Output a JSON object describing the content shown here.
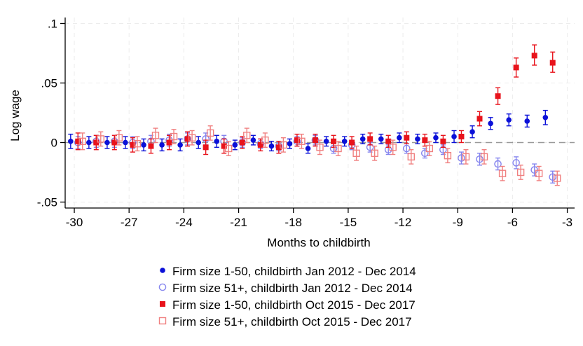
{
  "chart_data": {
    "type": "scatter",
    "xlabel": "Months to childbirth",
    "ylabel": "Log wage",
    "xlim": [
      -30.5,
      -2.6
    ],
    "ylim": [
      -0.055,
      0.105
    ],
    "xticks": [
      -30,
      -27,
      -24,
      -21,
      -18,
      -15,
      -12,
      -9,
      -6,
      -3
    ],
    "xtick_labels": [
      "-30",
      "-27",
      "-24",
      "-21",
      "-18",
      "-15",
      "-12",
      "-9",
      "-6",
      "-3"
    ],
    "yticks": [
      -0.05,
      0,
      0.05,
      0.1
    ],
    "ytick_labels": [
      "-.05",
      "0",
      ".05",
      ".1"
    ],
    "grid": true,
    "reference_line_y": 0,
    "legend_position": "bottom",
    "series": [
      {
        "name": "Firm size 1-50, childbirth Jan 2012 - Dec 2014",
        "marker": "filled-circle",
        "color": "#0a10d8",
        "x_offset": -0.2,
        "points": [
          {
            "x": -30,
            "y": 0.001,
            "lo": -0.005,
            "hi": 0.007
          },
          {
            "x": -29,
            "y": 0.0,
            "lo": -0.005,
            "hi": 0.005
          },
          {
            "x": -28,
            "y": 0.0,
            "lo": -0.005,
            "hi": 0.005
          },
          {
            "x": -27,
            "y": 0.0,
            "lo": -0.005,
            "hi": 0.005
          },
          {
            "x": -26,
            "y": -0.002,
            "lo": -0.007,
            "hi": 0.003
          },
          {
            "x": -25,
            "y": -0.002,
            "lo": -0.007,
            "hi": 0.003
          },
          {
            "x": -24,
            "y": -0.002,
            "lo": -0.007,
            "hi": 0.003
          },
          {
            "x": -23,
            "y": 0.0,
            "lo": -0.005,
            "hi": 0.005
          },
          {
            "x": -22,
            "y": 0.001,
            "lo": -0.004,
            "hi": 0.006
          },
          {
            "x": -21,
            "y": -0.002,
            "lo": -0.006,
            "hi": 0.002
          },
          {
            "x": -20,
            "y": 0.002,
            "lo": -0.002,
            "hi": 0.006
          },
          {
            "x": -19,
            "y": -0.003,
            "lo": -0.007,
            "hi": 0.001
          },
          {
            "x": -18,
            "y": -0.001,
            "lo": -0.005,
            "hi": 0.003
          },
          {
            "x": -17,
            "y": -0.005,
            "lo": -0.009,
            "hi": -0.001
          },
          {
            "x": -16,
            "y": 0.001,
            "lo": -0.003,
            "hi": 0.005
          },
          {
            "x": -15,
            "y": 0.001,
            "lo": -0.003,
            "hi": 0.005
          },
          {
            "x": -14,
            "y": 0.003,
            "lo": -0.001,
            "hi": 0.007
          },
          {
            "x": -13,
            "y": 0.003,
            "lo": -0.001,
            "hi": 0.007
          },
          {
            "x": -12,
            "y": 0.004,
            "lo": 0.0,
            "hi": 0.008
          },
          {
            "x": -11,
            "y": 0.003,
            "lo": -0.001,
            "hi": 0.007
          },
          {
            "x": -10,
            "y": 0.004,
            "lo": 0.0,
            "hi": 0.008
          },
          {
            "x": -9,
            "y": 0.005,
            "lo": 0.0,
            "hi": 0.01
          },
          {
            "x": -8,
            "y": 0.009,
            "lo": 0.004,
            "hi": 0.014
          },
          {
            "x": -7,
            "y": 0.016,
            "lo": 0.011,
            "hi": 0.021
          },
          {
            "x": -6,
            "y": 0.019,
            "lo": 0.014,
            "hi": 0.024
          },
          {
            "x": -5,
            "y": 0.018,
            "lo": 0.013,
            "hi": 0.023
          },
          {
            "x": -4,
            "y": 0.021,
            "lo": 0.015,
            "hi": 0.027
          }
        ]
      },
      {
        "name": "Firm size 51+, childbirth Jan 2012 - Dec 2014",
        "marker": "hollow-circle",
        "color": "#8585ee",
        "x_offset": 0.2,
        "points": [
          {
            "x": -30,
            "y": 0.0,
            "lo": -0.005,
            "hi": 0.005
          },
          {
            "x": -29,
            "y": 0.001,
            "lo": -0.004,
            "hi": 0.006
          },
          {
            "x": -28,
            "y": 0.001,
            "lo": -0.004,
            "hi": 0.006
          },
          {
            "x": -27,
            "y": 0.0,
            "lo": -0.005,
            "hi": 0.005
          },
          {
            "x": -26,
            "y": 0.001,
            "lo": -0.004,
            "hi": 0.006
          },
          {
            "x": -25,
            "y": 0.002,
            "lo": -0.003,
            "hi": 0.007
          },
          {
            "x": -24,
            "y": 0.003,
            "lo": -0.002,
            "hi": 0.008
          },
          {
            "x": -23,
            "y": 0.003,
            "lo": -0.002,
            "hi": 0.008
          },
          {
            "x": -22,
            "y": 0.001,
            "lo": -0.004,
            "hi": 0.006
          },
          {
            "x": -21,
            "y": 0.0,
            "lo": -0.004,
            "hi": 0.004
          },
          {
            "x": -20,
            "y": -0.001,
            "lo": -0.005,
            "hi": 0.003
          },
          {
            "x": -19,
            "y": -0.003,
            "lo": -0.007,
            "hi": 0.001
          },
          {
            "x": -18,
            "y": 0.001,
            "lo": -0.003,
            "hi": 0.005
          },
          {
            "x": -17,
            "y": 0.002,
            "lo": -0.002,
            "hi": 0.006
          },
          {
            "x": -16,
            "y": -0.005,
            "lo": -0.009,
            "hi": -0.001
          },
          {
            "x": -15,
            "y": -0.002,
            "lo": -0.006,
            "hi": 0.002
          },
          {
            "x": -14,
            "y": -0.004,
            "lo": -0.008,
            "hi": 0.0
          },
          {
            "x": -13,
            "y": -0.006,
            "lo": -0.01,
            "hi": -0.002
          },
          {
            "x": -12,
            "y": -0.005,
            "lo": -0.009,
            "hi": -0.001
          },
          {
            "x": -11,
            "y": -0.009,
            "lo": -0.013,
            "hi": -0.005
          },
          {
            "x": -10,
            "y": -0.006,
            "lo": -0.01,
            "hi": -0.002
          },
          {
            "x": -9,
            "y": -0.013,
            "lo": -0.018,
            "hi": -0.008
          },
          {
            "x": -8,
            "y": -0.014,
            "lo": -0.019,
            "hi": -0.009
          },
          {
            "x": -7,
            "y": -0.018,
            "lo": -0.023,
            "hi": -0.013
          },
          {
            "x": -6,
            "y": -0.017,
            "lo": -0.022,
            "hi": -0.012
          },
          {
            "x": -5,
            "y": -0.023,
            "lo": -0.028,
            "hi": -0.018
          },
          {
            "x": -4,
            "y": -0.029,
            "lo": -0.034,
            "hi": -0.024
          }
        ]
      },
      {
        "name": "Firm size 1-50, childbirth Oct 2015 - Dec 2017",
        "marker": "filled-square",
        "color": "#e8131b",
        "x_offset": 0.2,
        "points": [
          {
            "x": -30,
            "y": 0.001,
            "lo": -0.006,
            "hi": 0.008
          },
          {
            "x": -29,
            "y": 0.0,
            "lo": -0.006,
            "hi": 0.006
          },
          {
            "x": -28,
            "y": 0.0,
            "lo": -0.006,
            "hi": 0.006
          },
          {
            "x": -27,
            "y": -0.002,
            "lo": -0.008,
            "hi": 0.004
          },
          {
            "x": -26,
            "y": -0.003,
            "lo": -0.009,
            "hi": 0.003
          },
          {
            "x": -25,
            "y": 0.0,
            "lo": -0.006,
            "hi": 0.006
          },
          {
            "x": -24,
            "y": 0.003,
            "lo": -0.003,
            "hi": 0.009
          },
          {
            "x": -23,
            "y": -0.004,
            "lo": -0.01,
            "hi": 0.002
          },
          {
            "x": -22,
            "y": -0.003,
            "lo": -0.009,
            "hi": 0.003
          },
          {
            "x": -21,
            "y": 0.0,
            "lo": -0.005,
            "hi": 0.005
          },
          {
            "x": -20,
            "y": -0.002,
            "lo": -0.007,
            "hi": 0.003
          },
          {
            "x": -19,
            "y": -0.004,
            "lo": -0.009,
            "hi": 0.001
          },
          {
            "x": -18,
            "y": 0.002,
            "lo": -0.003,
            "hi": 0.007
          },
          {
            "x": -17,
            "y": 0.002,
            "lo": -0.003,
            "hi": 0.007
          },
          {
            "x": -16,
            "y": 0.001,
            "lo": -0.004,
            "hi": 0.006
          },
          {
            "x": -15,
            "y": 0.0,
            "lo": -0.005,
            "hi": 0.005
          },
          {
            "x": -14,
            "y": 0.003,
            "lo": -0.002,
            "hi": 0.008
          },
          {
            "x": -13,
            "y": 0.001,
            "lo": -0.004,
            "hi": 0.006
          },
          {
            "x": -12,
            "y": 0.004,
            "lo": -0.001,
            "hi": 0.009
          },
          {
            "x": -11,
            "y": 0.002,
            "lo": -0.003,
            "hi": 0.007
          },
          {
            "x": -10,
            "y": 0.001,
            "lo": -0.004,
            "hi": 0.006
          },
          {
            "x": -9,
            "y": 0.005,
            "lo": 0.0,
            "hi": 0.01
          },
          {
            "x": -8,
            "y": 0.02,
            "lo": 0.014,
            "hi": 0.026
          },
          {
            "x": -7,
            "y": 0.039,
            "lo": 0.032,
            "hi": 0.046
          },
          {
            "x": -6,
            "y": 0.063,
            "lo": 0.055,
            "hi": 0.071
          },
          {
            "x": -5,
            "y": 0.073,
            "lo": 0.065,
            "hi": 0.082
          },
          {
            "x": -4,
            "y": 0.067,
            "lo": 0.059,
            "hi": 0.076
          }
        ]
      },
      {
        "name": "Firm size 51+, childbirth Oct 2015 - Dec 2017",
        "marker": "hollow-square",
        "color": "#f08080",
        "x_offset": 0.45,
        "points": [
          {
            "x": -30,
            "y": 0.001,
            "lo": -0.006,
            "hi": 0.008
          },
          {
            "x": -29,
            "y": 0.003,
            "lo": -0.003,
            "hi": 0.009
          },
          {
            "x": -28,
            "y": 0.004,
            "lo": -0.002,
            "hi": 0.01
          },
          {
            "x": -27,
            "y": -0.001,
            "lo": -0.007,
            "hi": 0.005
          },
          {
            "x": -26,
            "y": 0.006,
            "lo": 0.0,
            "hi": 0.012
          },
          {
            "x": -25,
            "y": 0.005,
            "lo": -0.001,
            "hi": 0.011
          },
          {
            "x": -24,
            "y": 0.004,
            "lo": -0.002,
            "hi": 0.01
          },
          {
            "x": -23,
            "y": 0.008,
            "lo": 0.002,
            "hi": 0.014
          },
          {
            "x": -22,
            "y": -0.005,
            "lo": -0.011,
            "hi": 0.001
          },
          {
            "x": -21,
            "y": 0.006,
            "lo": 0.0,
            "hi": 0.012
          },
          {
            "x": -20,
            "y": 0.002,
            "lo": -0.004,
            "hi": 0.008
          },
          {
            "x": -19,
            "y": -0.002,
            "lo": -0.008,
            "hi": 0.004
          },
          {
            "x": -18,
            "y": 0.001,
            "lo": -0.005,
            "hi": 0.007
          },
          {
            "x": -17,
            "y": -0.004,
            "lo": -0.01,
            "hi": 0.002
          },
          {
            "x": -16,
            "y": -0.005,
            "lo": -0.011,
            "hi": 0.001
          },
          {
            "x": -15,
            "y": -0.009,
            "lo": -0.015,
            "hi": -0.003
          },
          {
            "x": -14,
            "y": -0.009,
            "lo": -0.015,
            "hi": -0.003
          },
          {
            "x": -13,
            "y": -0.004,
            "lo": -0.01,
            "hi": 0.002
          },
          {
            "x": -12,
            "y": -0.012,
            "lo": -0.018,
            "hi": -0.006
          },
          {
            "x": -11,
            "y": -0.005,
            "lo": -0.011,
            "hi": 0.001
          },
          {
            "x": -10,
            "y": -0.011,
            "lo": -0.017,
            "hi": -0.005
          },
          {
            "x": -9,
            "y": -0.012,
            "lo": -0.018,
            "hi": -0.006
          },
          {
            "x": -8,
            "y": -0.012,
            "lo": -0.018,
            "hi": -0.006
          },
          {
            "x": -7,
            "y": -0.026,
            "lo": -0.032,
            "hi": -0.02
          },
          {
            "x": -6,
            "y": -0.025,
            "lo": -0.031,
            "hi": -0.019
          },
          {
            "x": -5,
            "y": -0.026,
            "lo": -0.032,
            "hi": -0.02
          },
          {
            "x": -4,
            "y": -0.03,
            "lo": -0.036,
            "hi": -0.024
          }
        ]
      }
    ]
  }
}
